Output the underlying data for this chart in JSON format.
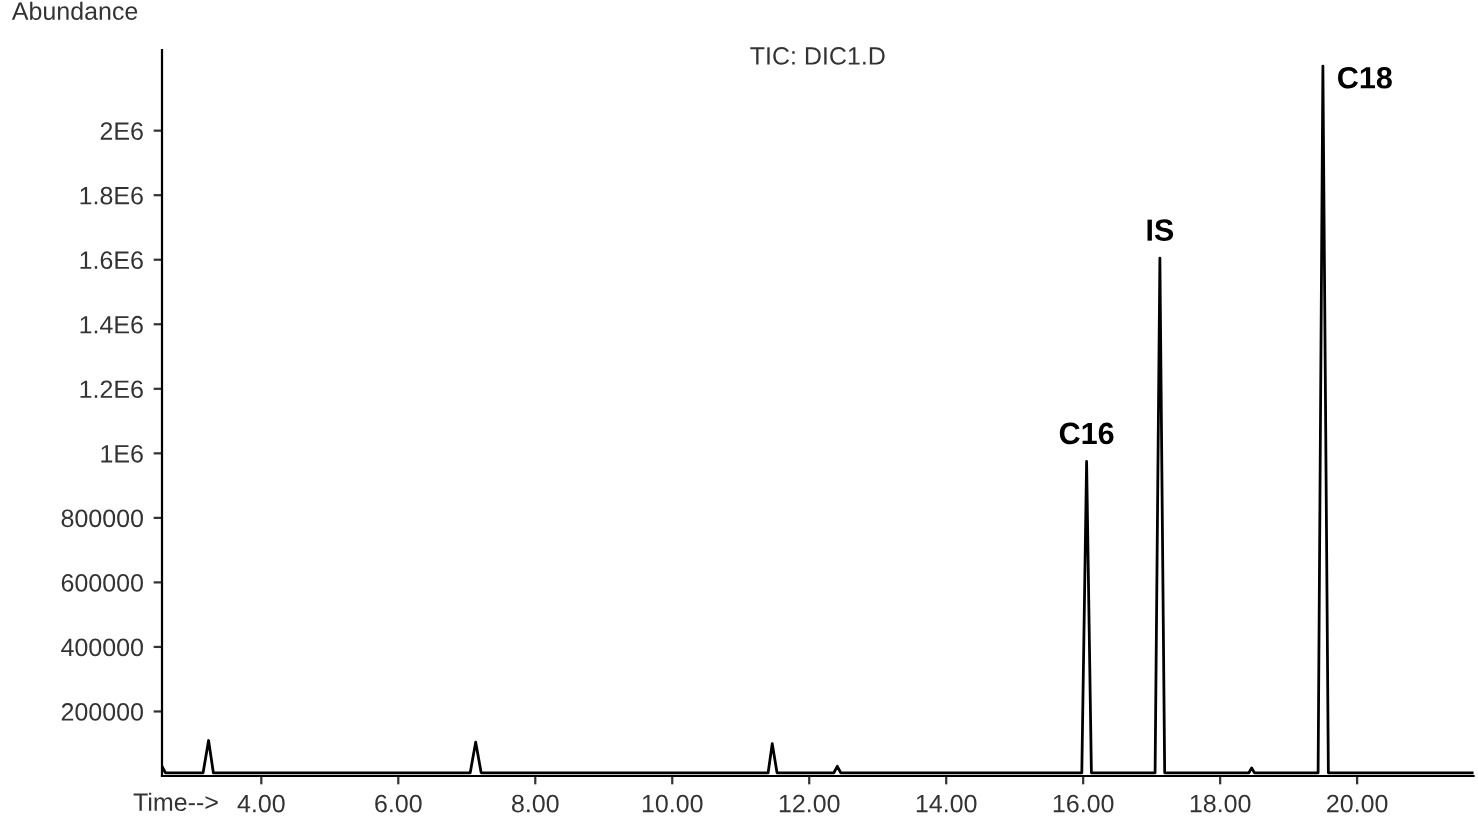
{
  "chart_data": {
    "type": "line",
    "title": "TIC: DIC1.D",
    "xlabel": "Time-->",
    "ylabel": "Abundance",
    "x": [
      2.55,
      2.6,
      3.15,
      3.23,
      3.3,
      7.05,
      7.13,
      7.21,
      11.4,
      11.46,
      11.53,
      12.36,
      12.41,
      12.46,
      15.98,
      16.05,
      16.12,
      17.05,
      17.12,
      17.19,
      18.42,
      18.46,
      18.5,
      19.43,
      19.5,
      19.58,
      21.7
    ],
    "series": [
      {
        "color": "#000000",
        "values": [
          30000,
          10000,
          10000,
          110000,
          10000,
          10000,
          105000,
          10000,
          10000,
          100000,
          10000,
          10000,
          30000,
          10000,
          10000,
          975000,
          10000,
          10000,
          1605000,
          10000,
          10000,
          25000,
          10000,
          10000,
          2200000,
          10000,
          10000
        ]
      }
    ],
    "xlim": [
      2.55,
      21.7
    ],
    "ylim": [
      0,
      2250000
    ],
    "xticks": [
      {
        "value": 4,
        "label": "4.00"
      },
      {
        "value": 6,
        "label": "6.00"
      },
      {
        "value": 8,
        "label": "8.00"
      },
      {
        "value": 10,
        "label": "10.00"
      },
      {
        "value": 12,
        "label": "12.00"
      },
      {
        "value": 14,
        "label": "14.00"
      },
      {
        "value": 16,
        "label": "16.00"
      },
      {
        "value": 18,
        "label": "18.00"
      },
      {
        "value": 20,
        "label": "20.00"
      }
    ],
    "yticks": [
      200000,
      400000,
      600000,
      800000,
      {
        "value": 1000000,
        "label": "1E6"
      },
      {
        "value": 1200000,
        "label": "1.2E6"
      },
      {
        "value": 1400000,
        "label": "1.4E6"
      },
      {
        "value": 1600000,
        "label": "1.6E6"
      },
      {
        "value": 1800000,
        "label": "1.8E6"
      },
      {
        "value": 2000000,
        "label": "2E6"
      }
    ],
    "annotations": [
      {
        "text": "C16",
        "x": 16.05,
        "y": 975000
      },
      {
        "text": "IS",
        "x": 17.12,
        "y": 1605000
      },
      {
        "text": "C18",
        "x": 19.5,
        "y": 2200000
      }
    ],
    "grid": false,
    "legend": false,
    "marker": "none",
    "line_style": "solid"
  }
}
